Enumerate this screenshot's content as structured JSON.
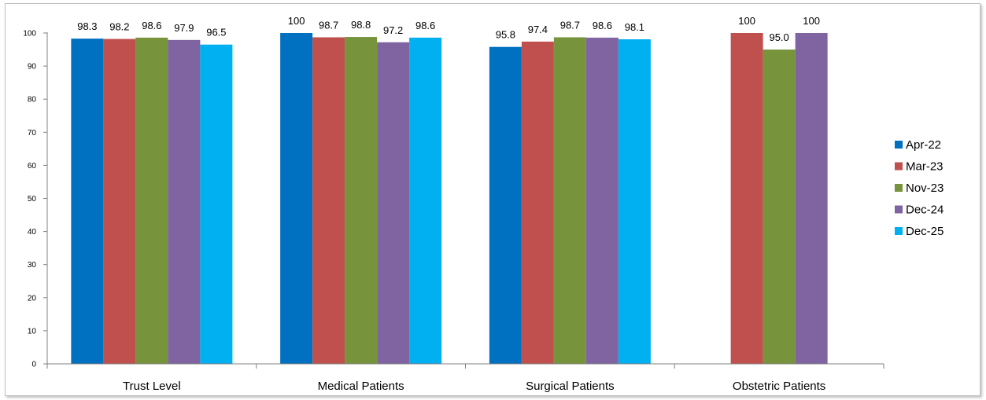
{
  "chart_data": {
    "type": "bar",
    "categories": [
      "Trust Level",
      "Medical Patients",
      "Surgical Patients",
      "Obstetric Patients"
    ],
    "series": [
      {
        "name": "Apr-22",
        "color": "#0070C0",
        "values": [
          98.3,
          100,
          95.8,
          null
        ],
        "labels": [
          "98.3",
          "100",
          "95.8",
          null
        ]
      },
      {
        "name": "Mar-23",
        "color": "#C0504D",
        "values": [
          98.2,
          98.7,
          97.4,
          100
        ],
        "labels": [
          "98.2",
          "98.7",
          "97.4",
          "100"
        ]
      },
      {
        "name": "Nov-23",
        "color": "#77933C",
        "values": [
          98.6,
          98.8,
          98.7,
          95.0
        ],
        "labels": [
          "98.6",
          "98.8",
          "98.7",
          "95.0"
        ]
      },
      {
        "name": "Dec-24",
        "color": "#8064A2",
        "values": [
          97.9,
          97.2,
          98.6,
          100
        ],
        "labels": [
          "97.9",
          "97.2",
          "98.6",
          "100"
        ]
      },
      {
        "name": "Dec-25",
        "color": "#00B0F0",
        "values": [
          96.5,
          98.6,
          98.1,
          null
        ],
        "labels": [
          "96.5",
          "98.6",
          "98.1",
          null
        ]
      }
    ],
    "title": "",
    "xlabel": "",
    "ylabel": "",
    "ylim": [
      0,
      100
    ],
    "yticks": [
      "0",
      "10",
      "20",
      "30",
      "40",
      "50",
      "60",
      "70",
      "80",
      "90",
      "100"
    ],
    "grid": false,
    "legend": "right"
  }
}
